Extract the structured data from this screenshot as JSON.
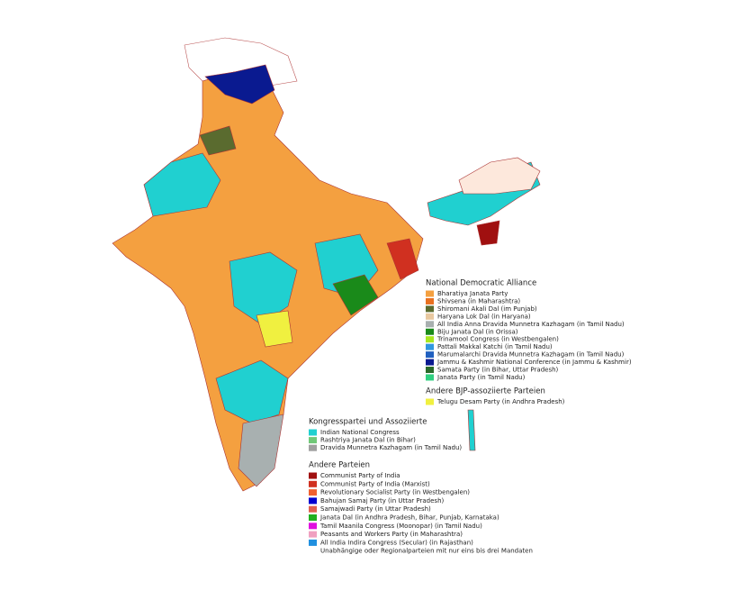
{
  "legend": {
    "groups": [
      {
        "title": "National Democratic Alliance",
        "items": [
          {
            "label": "Bharatiya Janata Party",
            "color": "#f4a040"
          },
          {
            "label": "Shivsena (in Maharashtra)",
            "color": "#e87020"
          },
          {
            "label": "Shiromani Akali Dal (im Punjab)",
            "color": "#5a6b2f"
          },
          {
            "label": "Haryana Lok Dal (in Haryana)",
            "color": "#e8c8a0"
          },
          {
            "label": "All India Anna Dravida Munnetra Kazhagam (in Tamil Nadu)",
            "color": "#a8b0b0"
          },
          {
            "label": "Biju Janata Dal (in Orissa)",
            "color": "#1a8a1a"
          },
          {
            "label": "Trinamool Congress (in Westbengalen)",
            "color": "#a8e820"
          },
          {
            "label": "Pattali Makkal Katchi (in Tamil Nadu)",
            "color": "#3098e0"
          },
          {
            "label": "Marumalarchi Dravida Munnetra Kazhagam (in Tamil Nadu)",
            "color": "#2060c0"
          },
          {
            "label": "Jammu & Kashmir National Conference (in Jammu & Kashmir)",
            "color": "#0a1a90"
          },
          {
            "label": "Samata Party (in Bihar, Uttar Pradesh)",
            "color": "#2a6a2a"
          },
          {
            "label": "Janata Party (in Tamil Nadu)",
            "color": "#30d080"
          }
        ]
      },
      {
        "title": "Andere BJP-assoziierte Parteien",
        "items": [
          {
            "label": "Telugu Desam Party (in Andhra Pradesh)",
            "color": "#f0f040"
          }
        ]
      },
      {
        "title": "Kongresspartei und Assoziierte",
        "items": [
          {
            "label": "Indian National Congress",
            "color": "#20d0d0"
          },
          {
            "label": "Rashtriya Janata Dal (in Bihar)",
            "color": "#70c878"
          },
          {
            "label": "Dravida Munnetra Kazhagam (in Tamil Nadu)",
            "color": "#a0a0a0"
          }
        ]
      },
      {
        "title": "Andere Parteien",
        "items": [
          {
            "label": "Communist Party of India",
            "color": "#a01010"
          },
          {
            "label": "Communist Party of India (Marxist)",
            "color": "#d03020"
          },
          {
            "label": "Revolutionary Socialist Party (in Westbengalen)",
            "color": "#f06030"
          },
          {
            "label": "Bahujan Samaj Party (in Uttar Pradesh)",
            "color": "#0000d0"
          },
          {
            "label": "Samajwadi Party (in Uttar Pradesh)",
            "color": "#e06050"
          },
          {
            "label": "Janata Dal (in Andhra Pradesh, Bihar, Punjab, Karnataka)",
            "color": "#20b020"
          },
          {
            "label": "Tamil Maanila Congress (Moonopar) (in Tamil Nadu)",
            "color": "#e010e0"
          },
          {
            "label": "Peasants and Workers Party (in Maharashtra)",
            "color": "#f0a0c0"
          },
          {
            "label": "All India Indira Congress (Secular) (in Rajasthan)",
            "color": "#2090e0"
          },
          {
            "label": "Unabhängige oder Regionalparteien mit nur eins bis drei Mandaten",
            "color": "#ffffff"
          }
        ]
      }
    ]
  }
}
